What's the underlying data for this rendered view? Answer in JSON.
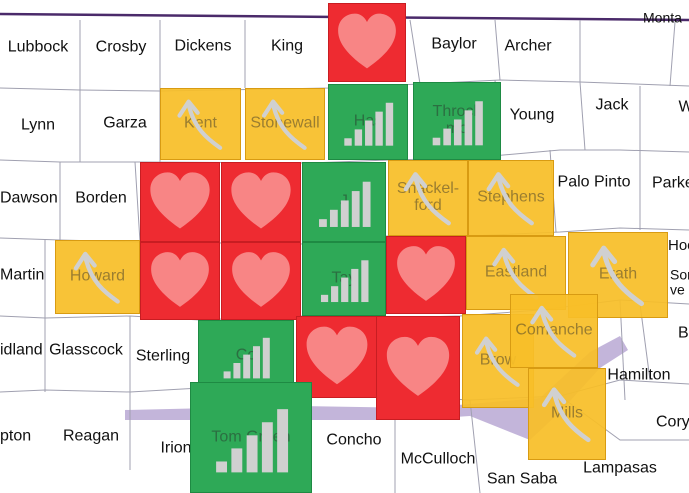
{
  "map": {
    "colors": {
      "red": "#ee2b31",
      "green": "#2ea957",
      "yellow": "#f8be28",
      "border": "#a0a0b0",
      "state_line": "#4a2a6a",
      "river_band": "#b9a8d4",
      "icon": "#d0d0d0"
    },
    "labels": {
      "lubbock": "Lubbock",
      "crosby": "Crosby",
      "dickens": "Dickens",
      "king": "King",
      "baylor": "Baylor",
      "archer": "Archer",
      "montague": "Monta",
      "lynn": "Lynn",
      "garza": "Garza",
      "young": "Young",
      "jack": "Jack",
      "wise": "W",
      "dawson": "Dawson",
      "borden": "Borden",
      "palo_pinto": "Palo Pinto",
      "parker": "Parke",
      "martin": "Martin",
      "hood": "Hoo",
      "somervell": "Som\nve",
      "midland": "idland",
      "glasscock": "Glasscock",
      "sterling": "Sterling",
      "bosque": "B",
      "hamilton": "Hamilton",
      "upton": "pton",
      "reagan": "Reagan",
      "irion": "Irion",
      "concho": "Concho",
      "mcculloch": "McCulloch",
      "san_saba": "San Saba",
      "lampasas": "Lampasas",
      "coryell": "Cory"
    },
    "tiles": [
      {
        "id": "cottle",
        "label": "",
        "status": "red",
        "icon": "heart-icon"
      },
      {
        "id": "kent",
        "label": "Kent",
        "status": "yellow",
        "icon": "curved-arrow-icon"
      },
      {
        "id": "stonewall",
        "label": "Stonewall",
        "status": "yellow",
        "icon": "curved-arrow-icon"
      },
      {
        "id": "haskell",
        "label": "Has",
        "status": "green",
        "icon": "bar-chart-icon"
      },
      {
        "id": "throckmorton",
        "label": "Throck\nmo",
        "status": "green",
        "icon": "bar-chart-icon"
      },
      {
        "id": "scurry",
        "label": "",
        "status": "red",
        "icon": "heart-icon"
      },
      {
        "id": "fisher",
        "label": "",
        "status": "red",
        "icon": "heart-icon"
      },
      {
        "id": "jones",
        "label": "J",
        "status": "green",
        "icon": "bar-chart-icon"
      },
      {
        "id": "shackelford",
        "label": "Shackel-\nford",
        "status": "yellow",
        "icon": "curved-arrow-icon"
      },
      {
        "id": "stephens",
        "label": "Stephens",
        "status": "yellow",
        "icon": "curved-arrow-icon"
      },
      {
        "id": "howard",
        "label": "Howard",
        "status": "yellow",
        "icon": "curved-arrow-icon"
      },
      {
        "id": "mitchell",
        "label": "",
        "status": "red",
        "icon": "heart-icon"
      },
      {
        "id": "nolan",
        "label": "",
        "status": "red",
        "icon": "heart-icon"
      },
      {
        "id": "taylor",
        "label": "Tay",
        "status": "green",
        "icon": "bar-chart-icon"
      },
      {
        "id": "callahan",
        "label": "",
        "status": "red",
        "icon": "heart-icon"
      },
      {
        "id": "eastland",
        "label": "Eastland",
        "status": "yellow",
        "icon": "curved-arrow-icon"
      },
      {
        "id": "erath",
        "label": "Erath",
        "status": "yellow",
        "icon": "curved-arrow-icon"
      },
      {
        "id": "coke",
        "label": "Co",
        "status": "green",
        "icon": "bar-chart-icon"
      },
      {
        "id": "runnels",
        "label": "",
        "status": "red",
        "icon": "heart-icon"
      },
      {
        "id": "coleman",
        "label": "",
        "status": "red",
        "icon": "heart-icon"
      },
      {
        "id": "brown",
        "label": "Brow",
        "status": "yellow",
        "icon": "curved-arrow-icon"
      },
      {
        "id": "comanche",
        "label": "Comanche",
        "status": "yellow",
        "icon": "curved-arrow-icon"
      },
      {
        "id": "tom_green",
        "label": "Tom Green",
        "status": "green",
        "icon": "bar-chart-icon"
      },
      {
        "id": "mills",
        "label": "Mills",
        "status": "yellow",
        "icon": "curved-arrow-icon"
      }
    ]
  }
}
